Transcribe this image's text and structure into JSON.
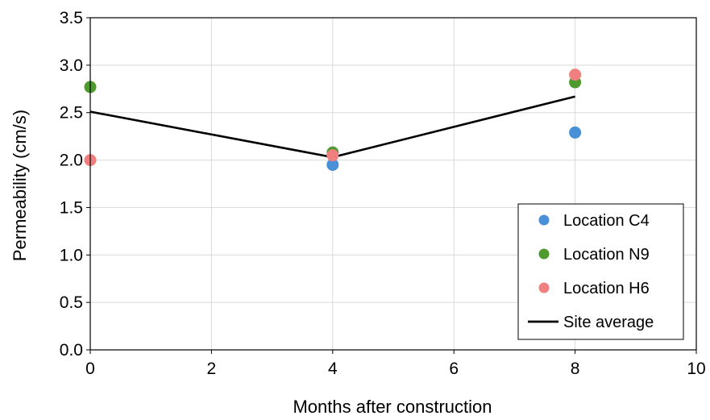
{
  "chart_data": {
    "type": "scatter",
    "title": "",
    "xlabel": "Months after construction",
    "ylabel": "Permeability (cm/s)",
    "xlim": [
      0,
      10
    ],
    "ylim": [
      0,
      3.5
    ],
    "x_ticks": [
      0,
      2,
      4,
      6,
      8,
      10
    ],
    "x_tick_labels": [
      "0",
      "2",
      "4",
      "6",
      "8",
      "10"
    ],
    "y_ticks": [
      0,
      0.5,
      1,
      1.5,
      2,
      2.5,
      3,
      3.5
    ],
    "y_tick_labels": [
      "0.0",
      "0.5",
      "1.0",
      "1.5",
      "2.0",
      "2.5",
      "3.0",
      "3.5"
    ],
    "grid": true,
    "legend_position": "bottom-right",
    "series": [
      {
        "name": "Location C4",
        "kind": "scatter",
        "color": "#4a90d9",
        "x": [
          4,
          8
        ],
        "y": [
          1.95,
          2.29
        ]
      },
      {
        "name": "Location N9",
        "kind": "scatter",
        "color": "#4e9a2e",
        "x": [
          0,
          4,
          8
        ],
        "y": [
          2.77,
          2.08,
          2.82
        ]
      },
      {
        "name": "Location H6",
        "kind": "scatter",
        "color": "#f08080",
        "x": [
          0,
          4,
          8
        ],
        "y": [
          2.0,
          2.05,
          2.9
        ]
      },
      {
        "name": "Site average",
        "kind": "line",
        "color": "#000000",
        "x": [
          0,
          4,
          8
        ],
        "y": [
          2.51,
          2.03,
          2.67
        ]
      }
    ]
  }
}
